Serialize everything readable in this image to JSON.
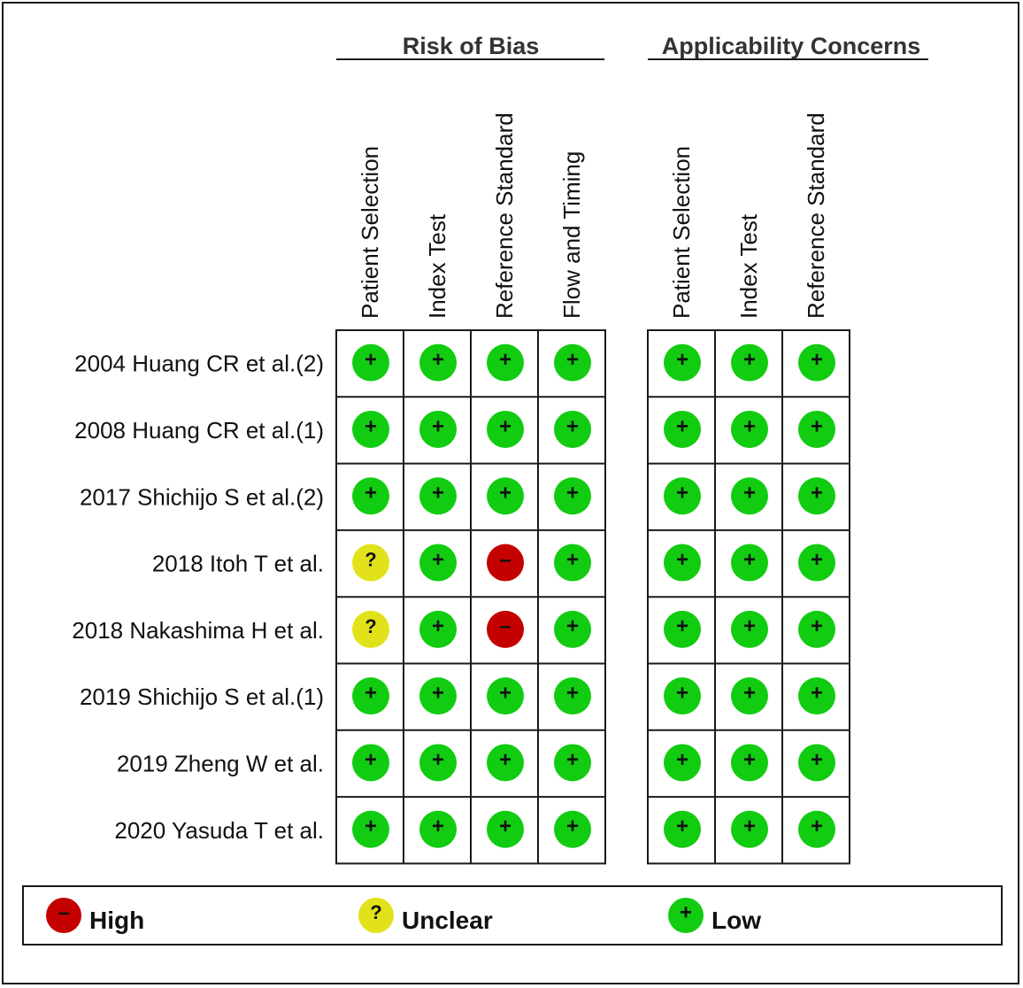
{
  "chart_data": {
    "type": "table",
    "groups": [
      {
        "title": "Risk of Bias",
        "columns": [
          "Patient Selection",
          "Index Test",
          "Reference Standard",
          "Flow and Timing"
        ]
      },
      {
        "title": "Applicability Concerns",
        "columns": [
          "Patient Selection",
          "Index Test",
          "Reference Standard"
        ]
      }
    ],
    "studies": [
      "2004 Huang CR  et al.(2)",
      "2008 Huang CR  et al.(1)",
      "2017 Shichijo S et al.(2)",
      "2018 Itoh T et al.",
      "2018 Nakashima H et al.",
      "2019 Shichijo S et al.(1)",
      "2019 Zheng W et al.",
      "2020 Yasuda T et al."
    ],
    "ratings": [
      [
        "low",
        "low",
        "low",
        "low",
        "low",
        "low",
        "low"
      ],
      [
        "low",
        "low",
        "low",
        "low",
        "low",
        "low",
        "low"
      ],
      [
        "low",
        "low",
        "low",
        "low",
        "low",
        "low",
        "low"
      ],
      [
        "unclear",
        "low",
        "high",
        "low",
        "low",
        "low",
        "low"
      ],
      [
        "unclear",
        "low",
        "high",
        "low",
        "low",
        "low",
        "low"
      ],
      [
        "low",
        "low",
        "low",
        "low",
        "low",
        "low",
        "low"
      ],
      [
        "low",
        "low",
        "low",
        "low",
        "low",
        "low",
        "low"
      ],
      [
        "low",
        "low",
        "low",
        "low",
        "low",
        "low",
        "low"
      ]
    ],
    "legend": [
      {
        "key": "high",
        "label": "High",
        "symbol": "–",
        "color": "#c40000"
      },
      {
        "key": "unclear",
        "label": "Unclear",
        "symbol": "?",
        "color": "#e2e21a"
      },
      {
        "key": "low",
        "label": "Low",
        "symbol": "+",
        "color": "#11cc11"
      }
    ],
    "grid_line_color": "#1a1a1a"
  }
}
